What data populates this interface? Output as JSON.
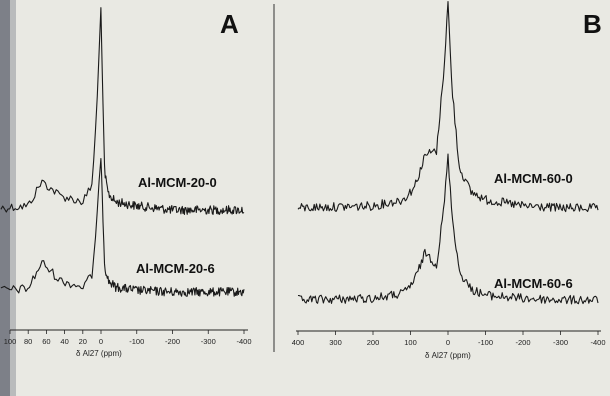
{
  "chart_data": [
    {
      "type": "line",
      "panel": "A",
      "xlabel": "δ Al27 (ppm)",
      "x_ticks": [
        100,
        80,
        60,
        40,
        20,
        0,
        -100,
        -200,
        -300,
        -400
      ],
      "x_tick_labels": [
        "100",
        "80",
        "60",
        "40",
        "20",
        "0",
        "-100",
        "-200",
        "-300",
        "-400"
      ],
      "xlim": [
        110,
        -400
      ],
      "series": [
        {
          "name": "Al-MCM-20-0",
          "x": [
            110,
            80,
            65,
            45,
            20,
            10,
            5,
            0,
            -5,
            -10,
            -20,
            -40,
            -100,
            -200,
            -300,
            -400
          ],
          "y": [
            0.01,
            0.02,
            0.14,
            0.07,
            0.04,
            0.12,
            0.45,
            1.0,
            0.55,
            0.18,
            0.08,
            0.04,
            0.02,
            0.0,
            0.0,
            0.0
          ]
        },
        {
          "name": "Al-MCM-20-6",
          "x": [
            110,
            80,
            65,
            45,
            20,
            10,
            5,
            0,
            -5,
            -10,
            -20,
            -40,
            -100,
            -200,
            -300,
            -400
          ],
          "y": [
            0.01,
            0.02,
            0.18,
            0.07,
            0.03,
            0.1,
            0.38,
            0.85,
            0.5,
            0.16,
            0.07,
            0.03,
            0.01,
            0.0,
            0.0,
            0.0
          ]
        }
      ]
    },
    {
      "type": "line",
      "panel": "B",
      "xlabel": "δ Al27 (ppm)",
      "x_ticks": [
        400,
        300,
        200,
        100,
        0,
        -100,
        -200,
        -300,
        -400
      ],
      "x_tick_labels": [
        "400",
        "300",
        "200",
        "100",
        "0",
        "-100",
        "-200",
        "-300",
        "-400"
      ],
      "xlim": [
        400,
        -400
      ],
      "series": [
        {
          "name": "Al-MCM-60-0",
          "x": [
            400,
            200,
            120,
            90,
            60,
            30,
            10,
            0,
            -10,
            -30,
            -60,
            -100,
            -200,
            -300,
            -400
          ],
          "y": [
            0.0,
            0.01,
            0.04,
            0.1,
            0.26,
            0.28,
            0.7,
            1.0,
            0.6,
            0.2,
            0.08,
            0.04,
            0.01,
            0.0,
            0.0
          ]
        },
        {
          "name": "Al-MCM-60-6",
          "x": [
            400,
            200,
            120,
            90,
            60,
            30,
            10,
            0,
            -10,
            -30,
            -60,
            -100,
            -200,
            -300,
            -400
          ],
          "y": [
            0.0,
            0.01,
            0.04,
            0.12,
            0.3,
            0.22,
            0.6,
            0.9,
            0.55,
            0.18,
            0.07,
            0.03,
            0.01,
            0.0,
            0.0
          ]
        }
      ]
    }
  ],
  "panels": [
    {
      "letter": "A",
      "series_labels": [
        "Al-MCM-20-0",
        "Al-MCM-20-6"
      ],
      "axis_label": "δ Al27 (ppm)"
    },
    {
      "letter": "B",
      "series_labels": [
        "Al-MCM-60-0",
        "Al-MCM-60-6"
      ],
      "axis_label": "δ Al27 (ppm)"
    }
  ],
  "colors": {
    "background": "#e9e9e3",
    "trace": "#1a1a1a",
    "frame_line": "#222222"
  }
}
